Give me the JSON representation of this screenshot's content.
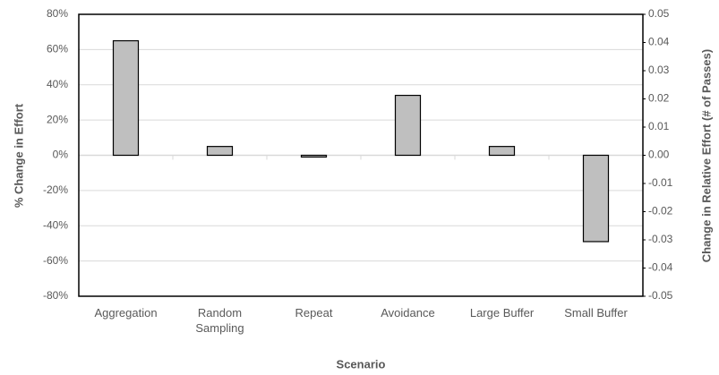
{
  "chart_data": {
    "type": "bar",
    "x_label": "Scenario",
    "y_label": "% Change in Effort",
    "y2_label": "Change in Relative Effort (# of Passes)",
    "categories": [
      "Aggregation",
      "Random Sampling",
      "Repeat",
      "Avoidance",
      "Large Buffer",
      "Small Buffer"
    ],
    "values": [
      65,
      5,
      -1,
      34,
      5,
      -49
    ],
    "color": "#bfbfbf",
    "ylim": [
      -80,
      80
    ],
    "yticks": [
      {
        "value": -80,
        "label": "-80%"
      },
      {
        "value": -60,
        "label": "-60%"
      },
      {
        "value": -40,
        "label": "-40%"
      },
      {
        "value": -20,
        "label": "-20%"
      },
      {
        "value": 0,
        "label": "0%"
      },
      {
        "value": 20,
        "label": "20%"
      },
      {
        "value": 40,
        "label": "40%"
      },
      {
        "value": 60,
        "label": "60%"
      },
      {
        "value": 80,
        "label": "80%"
      }
    ],
    "y2lim": [
      -0.05,
      0.05
    ],
    "y2ticks": [
      -0.05,
      -0.04,
      -0.03,
      -0.02,
      -0.01,
      {
        "value": 0,
        "label": "0.00"
      },
      0.01,
      0.02,
      0.03,
      0.04,
      0.05
    ],
    "grid": true
  }
}
